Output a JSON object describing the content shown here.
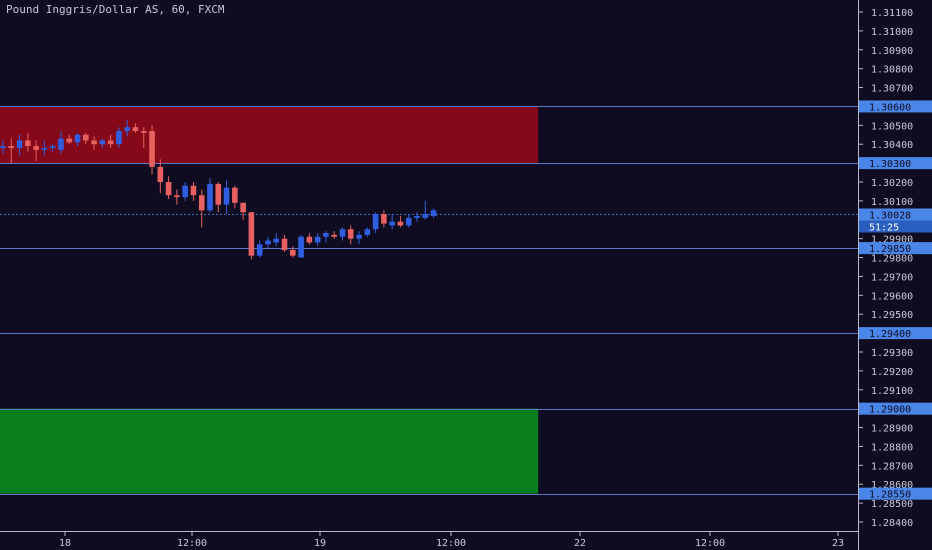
{
  "header": {
    "title": "Pound Inggris/Dollar AS, 60, FXCM"
  },
  "colors": {
    "background": "#0f0c22",
    "bull": "#2f5fe0",
    "bear": "#e8605f",
    "supply_zone": "#86091a",
    "demand_zone": "#0a7d1c",
    "level_line": "#5a78c8",
    "label_bg": "#4a86e8",
    "axis_text": "#c9c9d6"
  },
  "chart_data": {
    "type": "candlestick",
    "title": "Pound Inggris/Dollar AS, 60, FXCM",
    "ylim": [
      1.2834,
      1.3115
    ],
    "y_ticks": [
      "1.31100",
      "1.31000",
      "1.30900",
      "1.30800",
      "1.30700",
      "1.30600",
      "1.30500",
      "1.30400",
      "1.30300",
      "1.30200",
      "1.30100",
      "1.30000",
      "1.29900",
      "1.29800",
      "1.29700",
      "1.29600",
      "1.29500",
      "1.29400",
      "1.29300",
      "1.29200",
      "1.29100",
      "1.29000",
      "1.28900",
      "1.28800",
      "1.28700",
      "1.28600",
      "1.28500",
      "1.28400"
    ],
    "x_ticks": [
      "18",
      "12:00",
      "19",
      "12:00",
      "22",
      "12:00",
      "23"
    ],
    "zones": [
      {
        "kind": "supply",
        "top": 1.306,
        "bottom": 1.303,
        "x_from": 0,
        "x_to": 65
      },
      {
        "kind": "demand",
        "top": 1.29,
        "bottom": 1.2855,
        "x_from": 0,
        "x_to": 65
      }
    ],
    "levels": [
      {
        "value": 1.306,
        "label": "1.30600"
      },
      {
        "value": 1.303,
        "label": "1.30300"
      },
      {
        "value": 1.2985,
        "label": "1.29850"
      },
      {
        "value": 1.294,
        "label": "1.29400"
      },
      {
        "value": 1.29,
        "label": "1.29000"
      },
      {
        "value": 1.2855,
        "label": "1.28550"
      }
    ],
    "current_price": {
      "value": 1.30028,
      "label": "1.30028",
      "countdown": "51:25"
    },
    "candles": [
      {
        "o": 1.3038,
        "h": 1.3042,
        "l": 1.3035,
        "c": 1.3039
      },
      {
        "o": 1.3039,
        "h": 1.3043,
        "l": 1.303,
        "c": 1.3038
      },
      {
        "o": 1.3038,
        "h": 1.3045,
        "l": 1.3034,
        "c": 1.3042
      },
      {
        "o": 1.3042,
        "h": 1.3046,
        "l": 1.3036,
        "c": 1.3039
      },
      {
        "o": 1.3039,
        "h": 1.3042,
        "l": 1.3031,
        "c": 1.3037
      },
      {
        "o": 1.3037,
        "h": 1.3042,
        "l": 1.3034,
        "c": 1.3038
      },
      {
        "o": 1.3038,
        "h": 1.304,
        "l": 1.3036,
        "c": 1.3039
      },
      {
        "o": 1.3037,
        "h": 1.3047,
        "l": 1.3035,
        "c": 1.3043
      },
      {
        "o": 1.3043,
        "h": 1.3045,
        "l": 1.304,
        "c": 1.3041
      },
      {
        "o": 1.3041,
        "h": 1.3046,
        "l": 1.3039,
        "c": 1.3045
      },
      {
        "o": 1.3045,
        "h": 1.3046,
        "l": 1.304,
        "c": 1.3042
      },
      {
        "o": 1.3042,
        "h": 1.3044,
        "l": 1.3037,
        "c": 1.304
      },
      {
        "o": 1.304,
        "h": 1.3043,
        "l": 1.3038,
        "c": 1.3042
      },
      {
        "o": 1.3042,
        "h": 1.3045,
        "l": 1.3038,
        "c": 1.304
      },
      {
        "o": 1.304,
        "h": 1.3049,
        "l": 1.3038,
        "c": 1.3047
      },
      {
        "o": 1.3047,
        "h": 1.3053,
        "l": 1.3044,
        "c": 1.3049
      },
      {
        "o": 1.3049,
        "h": 1.3051,
        "l": 1.3046,
        "c": 1.3047
      },
      {
        "o": 1.3047,
        "h": 1.3049,
        "l": 1.3038,
        "c": 1.3046
      },
      {
        "o": 1.3047,
        "h": 1.305,
        "l": 1.3024,
        "c": 1.3028
      },
      {
        "o": 1.3028,
        "h": 1.3032,
        "l": 1.3014,
        "c": 1.302
      },
      {
        "o": 1.302,
        "h": 1.3023,
        "l": 1.3011,
        "c": 1.3013
      },
      {
        "o": 1.3013,
        "h": 1.3016,
        "l": 1.3008,
        "c": 1.3012
      },
      {
        "o": 1.3012,
        "h": 1.302,
        "l": 1.301,
        "c": 1.3018
      },
      {
        "o": 1.3018,
        "h": 1.302,
        "l": 1.301,
        "c": 1.3013
      },
      {
        "o": 1.3013,
        "h": 1.3016,
        "l": 1.2996,
        "c": 1.3005
      },
      {
        "o": 1.3005,
        "h": 1.3022,
        "l": 1.3004,
        "c": 1.3019
      },
      {
        "o": 1.3019,
        "h": 1.302,
        "l": 1.3004,
        "c": 1.3008
      },
      {
        "o": 1.3008,
        "h": 1.3021,
        "l": 1.3003,
        "c": 1.3017
      },
      {
        "o": 1.3017,
        "h": 1.3018,
        "l": 1.3006,
        "c": 1.3009
      },
      {
        "o": 1.3009,
        "h": 1.3009,
        "l": 1.3,
        "c": 1.3004
      },
      {
        "o": 1.3004,
        "h": 1.3004,
        "l": 1.2979,
        "c": 1.2981
      },
      {
        "o": 1.2981,
        "h": 1.2989,
        "l": 1.298,
        "c": 1.2987
      },
      {
        "o": 1.2987,
        "h": 1.2991,
        "l": 1.2985,
        "c": 1.2989
      },
      {
        "o": 1.2988,
        "h": 1.2993,
        "l": 1.2986,
        "c": 1.299
      },
      {
        "o": 1.299,
        "h": 1.2992,
        "l": 1.2983,
        "c": 1.2984
      },
      {
        "o": 1.2984,
        "h": 1.2986,
        "l": 1.298,
        "c": 1.2981
      },
      {
        "o": 1.298,
        "h": 1.2992,
        "l": 1.298,
        "c": 1.2991
      },
      {
        "o": 1.2991,
        "h": 1.2993,
        "l": 1.2987,
        "c": 1.2988
      },
      {
        "o": 1.2988,
        "h": 1.2993,
        "l": 1.2986,
        "c": 1.2991
      },
      {
        "o": 1.2991,
        "h": 1.2994,
        "l": 1.2988,
        "c": 1.2993
      },
      {
        "o": 1.2992,
        "h": 1.2994,
        "l": 1.299,
        "c": 1.2991
      },
      {
        "o": 1.2991,
        "h": 1.2996,
        "l": 1.2989,
        "c": 1.2995
      },
      {
        "o": 1.2995,
        "h": 1.2997,
        "l": 1.2987,
        "c": 1.299
      },
      {
        "o": 1.299,
        "h": 1.2994,
        "l": 1.2987,
        "c": 1.2992
      },
      {
        "o": 1.2992,
        "h": 1.2996,
        "l": 1.2991,
        "c": 1.2995
      },
      {
        "o": 1.2995,
        "h": 1.3004,
        "l": 1.2993,
        "c": 1.3003
      },
      {
        "o": 1.3003,
        "h": 1.3005,
        "l": 1.2996,
        "c": 1.2998
      },
      {
        "o": 1.2997,
        "h": 1.3003,
        "l": 1.2995,
        "c": 1.2999
      },
      {
        "o": 1.2999,
        "h": 1.3002,
        "l": 1.2996,
        "c": 1.2997
      },
      {
        "o": 1.2997,
        "h": 1.3003,
        "l": 1.2996,
        "c": 1.3001
      },
      {
        "o": 1.3001,
        "h": 1.3004,
        "l": 1.2999,
        "c": 1.3002
      },
      {
        "o": 1.3001,
        "h": 1.301,
        "l": 1.3,
        "c": 1.3003
      },
      {
        "o": 1.3002,
        "h": 1.3006,
        "l": 1.3001,
        "c": 1.3005
      }
    ]
  }
}
